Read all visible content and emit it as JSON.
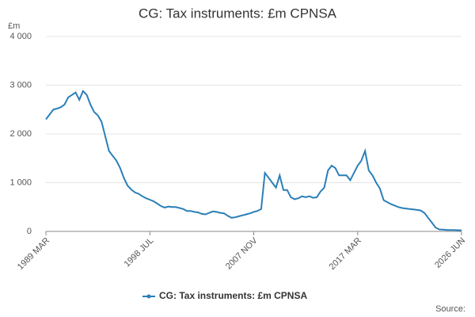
{
  "chart_data": {
    "type": "line",
    "title": "CG: Tax instruments: £m CPNSA",
    "y_unit": "£m",
    "source": "Source:",
    "categories": [
      "1989 MAR",
      null,
      null,
      null,
      null,
      null,
      null,
      null,
      null,
      null,
      null,
      null,
      null,
      null,
      null,
      null,
      null,
      null,
      null,
      null,
      null,
      null,
      null,
      null,
      null,
      null,
      null,
      null,
      "1998 JUL",
      null,
      null,
      null,
      null,
      null,
      null,
      null,
      null,
      null,
      null,
      null,
      null,
      null,
      null,
      null,
      null,
      null,
      null,
      null,
      null,
      null,
      null,
      null,
      null,
      null,
      null,
      null,
      "2007 NOV",
      null,
      null,
      null,
      null,
      null,
      null,
      null,
      null,
      null,
      null,
      null,
      null,
      null,
      null,
      null,
      null,
      null,
      null,
      null,
      null,
      null,
      null,
      null,
      null,
      null,
      null,
      null,
      "2017 MAR",
      null,
      null,
      null,
      null,
      null,
      null,
      null,
      null,
      null,
      null,
      null,
      null,
      null,
      null,
      null,
      null,
      null,
      null,
      null,
      null,
      null,
      null,
      null,
      null,
      null,
      null,
      null,
      "2026 JUN"
    ],
    "series": [
      {
        "name": "CG: Tax instruments: £m CPNSA",
        "color": "#2a7fb8",
        "values": [
          2300,
          2400,
          2500,
          2520,
          2550,
          2600,
          2750,
          2800,
          2850,
          2700,
          2880,
          2800,
          2600,
          2450,
          2380,
          2250,
          1950,
          1650,
          1550,
          1450,
          1300,
          1100,
          940,
          860,
          800,
          770,
          720,
          680,
          650,
          620,
          570,
          520,
          490,
          510,
          500,
          500,
          480,
          460,
          420,
          420,
          400,
          390,
          360,
          350,
          380,
          410,
          400,
          380,
          370,
          320,
          280,
          290,
          310,
          330,
          350,
          370,
          400,
          420,
          460,
          1200,
          1100,
          1000,
          900,
          1150,
          850,
          850,
          700,
          660,
          680,
          720,
          700,
          720,
          690,
          700,
          820,
          900,
          1250,
          1350,
          1300,
          1150,
          1150,
          1150,
          1050,
          1200,
          1350,
          1450,
          1650,
          1250,
          1150,
          1000,
          880,
          640,
          600,
          560,
          530,
          500,
          480,
          470,
          460,
          450,
          440,
          430,
          380,
          280,
          180,
          80,
          40,
          35,
          30,
          30,
          28,
          25,
          22
        ]
      }
    ],
    "ylim": [
      0,
      4000
    ],
    "yticks": [
      0,
      {
        "value": 1000,
        "label": "1 000"
      },
      {
        "value": 2000,
        "label": "2 000"
      },
      {
        "value": 3000,
        "label": "3 000"
      },
      {
        "value": 4000,
        "label": "4 000"
      }
    ],
    "grid": true
  }
}
